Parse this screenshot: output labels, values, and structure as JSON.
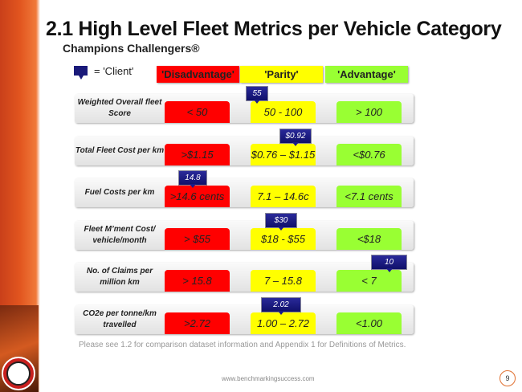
{
  "title": "2.1 High Level Fleet Metrics per Vehicle Category",
  "subtitle": "Champions Challengers®",
  "legend": {
    "client": "= 'Client'",
    "disadvantage": "'Disadvantage'",
    "parity": "'Parity'",
    "advantage": "'Advantage'"
  },
  "colors": {
    "disadvantage": "#ff0000",
    "parity": "#ffff00",
    "advantage": "#99ff33",
    "client_marker": "#1a1a7a"
  },
  "rows": [
    {
      "label": "Weighted Overall fleet Score",
      "disadvantage": "< 50",
      "parity": "50 - 100",
      "advantage": "> 100",
      "client": "55"
    },
    {
      "label": "Total  Fleet Cost per km",
      "disadvantage": ">$1.15",
      "parity": "$0.76 – $1.15",
      "advantage": "<$0.76",
      "client": "$0.92"
    },
    {
      "label": "Fuel Costs per km",
      "disadvantage": ">14.6 cents",
      "parity": "7.1 – 14.6c",
      "advantage": "<7.1 cents",
      "client": "14.8"
    },
    {
      "label": "Fleet M’ment Cost/ vehicle/month",
      "disadvantage": "> $55",
      "parity": "$18 - $55",
      "advantage": "<$18",
      "client": "$30"
    },
    {
      "label": "No. of Claims per million km",
      "disadvantage": "> 15.8",
      "parity": "7 – 15.8",
      "advantage": "< 7",
      "client": "10"
    },
    {
      "label": "CO2e per tonne/km travelled",
      "disadvantage": ">2.72",
      "parity": "1.00 – 2.72",
      "advantage": "<1.00",
      "client": "2.02"
    }
  ],
  "note": "Please see 1.2 for comparison dataset information and Appendix 1 for Definitions of Metrics.",
  "footer_url": "www.benchmarkingsuccess.com",
  "page_number": "9"
}
